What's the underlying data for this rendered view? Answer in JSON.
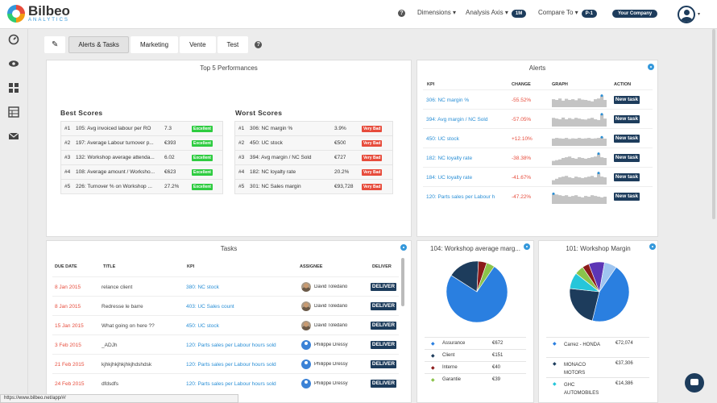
{
  "app": {
    "logo_name": "Bilbeo",
    "logo_sub": "ANALYTICS",
    "status_url": "https://www.bilbeo.net/app/#/"
  },
  "topnav": {
    "help": "?",
    "dimensions": "Dimensions ▾",
    "analysis_axis": "Analysis Axis ▾",
    "analysis_axis_badge": "1M",
    "compare_to": "Compare To ▾",
    "compare_to_badge": "P-1",
    "company": "Your Company",
    "caret": "▾"
  },
  "tabs": [
    {
      "label": "Alerts & Tasks",
      "active": true
    },
    {
      "label": "Marketing"
    },
    {
      "label": "Vente"
    },
    {
      "label": "Test"
    }
  ],
  "tabs_help": "?",
  "top_perf": {
    "title": "Top 5 Performances",
    "best_title": "Best Scores",
    "worst_title": "Worst Scores",
    "best": [
      {
        "rank": "#1",
        "name": "105: Avg invoiced labour per RO",
        "value": "7.3",
        "badge": "Excellent"
      },
      {
        "rank": "#2",
        "name": "197: Average Labour turnover p...",
        "value": "€393",
        "badge": "Excellent"
      },
      {
        "rank": "#3",
        "name": "132: Workshop average attenda...",
        "value": "6.02",
        "badge": "Excellent"
      },
      {
        "rank": "#4",
        "name": "108: Average amount / Worksho...",
        "value": "€623",
        "badge": "Excellent"
      },
      {
        "rank": "#5",
        "name": "226: Turnover % on Workshop ...",
        "value": "27.2%",
        "badge": "Excellent"
      }
    ],
    "worst": [
      {
        "rank": "#1",
        "name": "306: NC margin %",
        "value": "3.9%",
        "badge": "Very Bad"
      },
      {
        "rank": "#2",
        "name": "450: UC stock",
        "value": "€500",
        "badge": "Very Bad"
      },
      {
        "rank": "#3",
        "name": "394: Avg margin / NC Sold",
        "value": "€727",
        "badge": "Very Bad"
      },
      {
        "rank": "#4",
        "name": "182: NC loyalty rate",
        "value": "20.2%",
        "badge": "Very Bad"
      },
      {
        "rank": "#5",
        "name": "301: NC Sales margin",
        "value": "€93,728",
        "badge": "Very Bad"
      }
    ]
  },
  "alerts": {
    "title": "Alerts",
    "headers": {
      "kpi": "KPI",
      "change": "CHANGE",
      "graph": "GRAPH",
      "action": "ACTION"
    },
    "action_label": "New task",
    "rows": [
      {
        "kpi": "306: NC margin %",
        "change": "-55.52%",
        "spark": [
          0.55,
          0.5,
          0.6,
          0.45,
          0.58,
          0.5,
          0.55,
          0.48,
          0.6,
          0.52,
          0.5,
          0.45,
          0.4,
          0.55,
          0.6,
          0.8,
          0.5
        ]
      },
      {
        "kpi": "394: Avg margin / NC Sold",
        "change": "-57.05%",
        "spark": [
          0.6,
          0.55,
          0.5,
          0.62,
          0.5,
          0.58,
          0.52,
          0.6,
          0.55,
          0.5,
          0.48,
          0.55,
          0.6,
          0.5,
          0.45,
          0.85,
          0.55
        ]
      },
      {
        "kpi": "450: UC stock",
        "change": "+12.10%",
        "spark": [
          0.5,
          0.55,
          0.52,
          0.5,
          0.55,
          0.48,
          0.52,
          0.5,
          0.55,
          0.5,
          0.52,
          0.55,
          0.5,
          0.52,
          0.55,
          0.6,
          0.5
        ]
      },
      {
        "kpi": "182: NC loyalty rate",
        "change": "-38.38%",
        "spark": [
          0.3,
          0.35,
          0.4,
          0.5,
          0.55,
          0.6,
          0.5,
          0.45,
          0.55,
          0.5,
          0.45,
          0.5,
          0.55,
          0.6,
          0.8,
          0.55,
          0.5
        ]
      },
      {
        "kpi": "184: UC loyalty rate",
        "change": "-41.67%",
        "spark": [
          0.3,
          0.4,
          0.5,
          0.55,
          0.6,
          0.5,
          0.45,
          0.55,
          0.5,
          0.45,
          0.5,
          0.55,
          0.6,
          0.5,
          0.8,
          0.55,
          0.5
        ]
      },
      {
        "kpi": "120: Parts sales per Labour h",
        "change": "-47.22%",
        "spark": [
          0.7,
          0.65,
          0.6,
          0.55,
          0.6,
          0.5,
          0.55,
          0.6,
          0.5,
          0.45,
          0.55,
          0.5,
          0.6,
          0.55,
          0.5,
          0.45,
          0.5
        ]
      }
    ]
  },
  "tasks": {
    "title": "Tasks",
    "headers": {
      "due": "DUE DATE",
      "title": "TITLE",
      "kpi": "KPI",
      "assignee": "ASSIGNEE",
      "deliver": "DELIVER"
    },
    "deliver_label": "DELIVER",
    "rows": [
      {
        "due": "8 Jan 2015",
        "title": "relance client",
        "kpi": "380: NC stock",
        "assignee": "David Toledano",
        "photo": true
      },
      {
        "due": "8 Jan 2015",
        "title": "Redresse le barre",
        "kpi": "403: UC Sales count",
        "assignee": "David Toledano",
        "photo": true
      },
      {
        "due": "15 Jan 2015",
        "title": "What going on here ??",
        "kpi": "450: UC stock",
        "assignee": "David Toledano",
        "photo": true
      },
      {
        "due": "3 Feb 2015",
        "title": "_ADJh",
        "kpi": "120: Parts sales per Labour hours sold",
        "assignee": "Philippe Dressy",
        "photo": false
      },
      {
        "due": "21 Feb 2015",
        "title": "kjhkjhkjhkjhkjhdshdsk",
        "kpi": "120: Parts sales per Labour hours sold",
        "assignee": "Philippe Dressy",
        "photo": false
      },
      {
        "due": "24 Feb 2015",
        "title": "dfdsdfs",
        "kpi": "120: Parts sales per Labour hours sold",
        "assignee": "Philippe Dressy",
        "photo": false
      }
    ]
  },
  "pie1": {
    "title": "104: Workshop average marg...",
    "slices": [
      {
        "label": "Assurance",
        "value": 672,
        "color": "#2a7fe0"
      },
      {
        "label": "Client",
        "value": 151,
        "color": "#1d3c5c"
      },
      {
        "label": "Interne",
        "value": 40,
        "color": "#8b1a1a"
      },
      {
        "label": "Garantie",
        "value": 39,
        "color": "#8bc34a"
      }
    ],
    "values_text": [
      "€672",
      "€151",
      "€40",
      "€39"
    ]
  },
  "pie2": {
    "title": "101: Workshop Margin",
    "slices": [
      {
        "label": "Carrez - HONDA",
        "value": 72074,
        "color": "#2a7fe0"
      },
      {
        "label": "MONACO MOTORS",
        "value": 37306,
        "color": "#1d3c5c"
      },
      {
        "label": "GHC AUTOMOBILES",
        "value": 14386,
        "color": "#26c6da"
      },
      {
        "label": "",
        "value": 8000,
        "color": "#8bc34a"
      },
      {
        "label": "",
        "value": 6000,
        "color": "#8b1a1a"
      },
      {
        "label": "",
        "value": 14000,
        "color": "#5c35b5"
      },
      {
        "label": "",
        "value": 11000,
        "color": "#9fc5f0"
      }
    ],
    "values_text": [
      "€72,074",
      "€37,306",
      "€14,386"
    ]
  }
}
